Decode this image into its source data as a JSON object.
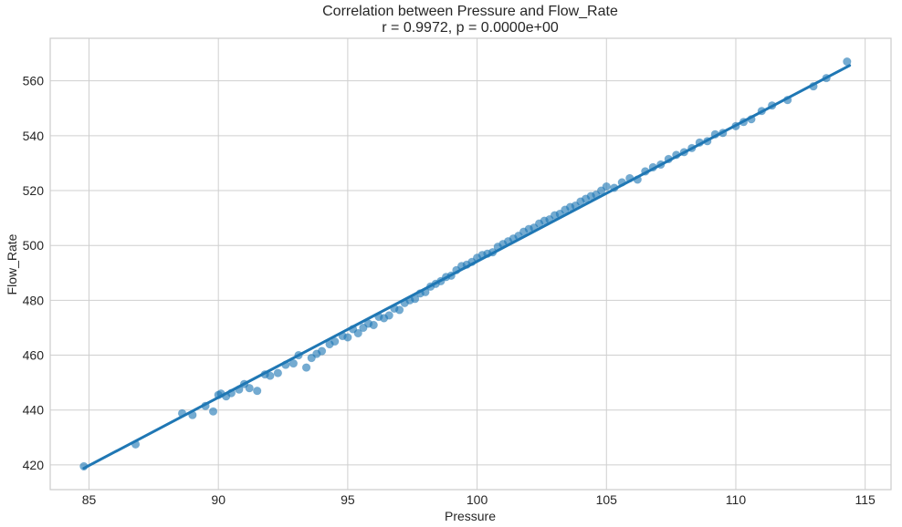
{
  "chart_data": {
    "type": "scatter",
    "title": "Correlation between Pressure and Flow_Rate",
    "subtitle": "r = 0.9972, p = 0.0000e+00",
    "xlabel": "Pressure",
    "ylabel": "Flow_Rate",
    "xlim": [
      83.5,
      116.0
    ],
    "ylim": [
      411.0,
      575.5
    ],
    "xticks": [
      85,
      90,
      95,
      100,
      105,
      110,
      115
    ],
    "yticks": [
      420,
      440,
      460,
      480,
      500,
      520,
      540,
      560
    ],
    "grid": true,
    "colors": {
      "points": "#1f77b4",
      "line": "#1f77b4",
      "grid": "#cfcfcf",
      "frame": "#cccccc",
      "background": "#ffffff"
    },
    "regression_line": {
      "x": [
        84.8,
        114.4
      ],
      "y": [
        418.8,
        565.6
      ]
    },
    "series": [
      {
        "x": [
          84.8,
          86.8,
          88.6,
          89.0,
          89.5,
          89.8,
          90.0,
          90.1,
          90.3,
          90.5,
          90.8,
          91.0,
          91.2,
          91.5,
          91.8,
          92.0,
          92.3,
          92.6,
          92.9,
          93.1,
          93.4,
          93.6,
          93.8,
          94.0,
          94.3,
          94.5,
          94.8,
          95.0,
          95.2,
          95.4,
          95.6,
          95.8,
          96.0,
          96.2,
          96.4,
          96.6,
          96.8,
          97.0,
          97.2,
          97.4,
          97.6,
          97.8,
          98.0,
          98.2,
          98.4,
          98.6,
          98.8,
          99.0,
          99.2,
          99.4,
          99.6,
          99.8,
          100.0,
          100.2,
          100.4,
          100.6,
          100.8,
          101.0,
          101.2,
          101.4,
          101.6,
          101.8,
          102.0,
          102.2,
          102.4,
          102.6,
          102.8,
          103.0,
          103.2,
          103.4,
          103.6,
          103.8,
          104.0,
          104.2,
          104.4,
          104.6,
          104.8,
          105.0,
          105.3,
          105.6,
          105.9,
          106.2,
          106.5,
          106.8,
          107.1,
          107.4,
          107.7,
          108.0,
          108.3,
          108.6,
          108.9,
          109.2,
          109.5,
          110.0,
          110.3,
          110.6,
          111.0,
          111.4,
          112.0,
          113.0,
          113.5,
          114.3
        ],
        "y": [
          419.5,
          427.5,
          438.8,
          438.2,
          441.5,
          439.5,
          445.5,
          446.0,
          445.0,
          446.2,
          447.5,
          449.5,
          448.0,
          447.0,
          453.0,
          452.5,
          453.5,
          456.5,
          457.0,
          460.0,
          455.5,
          459.0,
          460.5,
          461.5,
          464.0,
          465.0,
          467.0,
          466.5,
          469.5,
          468.0,
          470.0,
          471.5,
          471.0,
          474.0,
          473.5,
          474.5,
          477.0,
          476.5,
          479.0,
          480.0,
          480.5,
          482.5,
          483.0,
          485.0,
          486.0,
          487.0,
          488.5,
          489.0,
          491.0,
          492.5,
          493.0,
          494.0,
          495.5,
          496.5,
          497.0,
          497.5,
          499.5,
          500.5,
          501.5,
          502.5,
          503.5,
          505.0,
          506.0,
          506.5,
          508.0,
          509.0,
          509.5,
          511.0,
          511.5,
          513.0,
          514.0,
          514.5,
          516.0,
          517.0,
          518.0,
          518.5,
          520.0,
          521.5,
          521.0,
          523.0,
          524.5,
          524.0,
          527.0,
          528.5,
          529.5,
          531.5,
          533.0,
          534.0,
          535.5,
          537.5,
          538.0,
          540.5,
          541.0,
          543.5,
          545.0,
          546.0,
          549.0,
          551.0,
          553.0,
          558.0,
          561.0,
          567.0
        ]
      }
    ]
  }
}
